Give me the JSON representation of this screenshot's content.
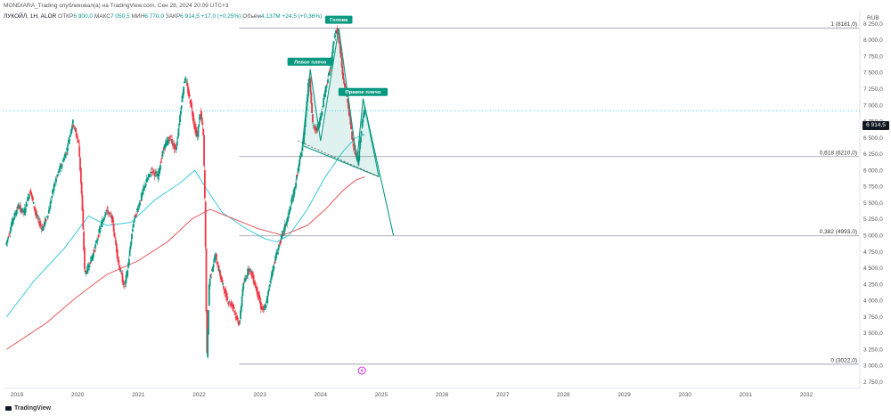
{
  "header": {
    "published": "MONDIARA_Trading опубликовал(а) на TradingView.com, Сен 28, 2024 20:09 UTC+3",
    "symbol": "ЛУКОЙЛ, 1Н, ALOR",
    "open_label": "ОТКР",
    "open": "6 900,0",
    "high_label": "МАКС",
    "high": "7 050,5",
    "low_label": "МИН",
    "low": "6 770,0",
    "close_label": "ЗАКР",
    "close": "6 914,5",
    "change": "+17,0 (+0,25%)",
    "volume_label": "Объём",
    "volume": "4,137M",
    "vol_change": "+24,5 (+0,36%)"
  },
  "currency": "RUB",
  "price_badge": "6 914,5",
  "logo_text": "TradingView",
  "colors": {
    "up": "#089981",
    "down": "#f23645",
    "ma_fast": "#26c6da",
    "ma_slow": "#e5484d",
    "fib": "#9598a1",
    "pattern": "#089981",
    "price_line": "#26c6da"
  },
  "chart_data": {
    "type": "candlestick",
    "y_axis_labels": [
      "8 250,0",
      "8 000,0",
      "7 750,0",
      "7 500,0",
      "7 250,0",
      "7 000,0",
      "6 750,0",
      "6 500,0",
      "6 250,0",
      "6 000,0",
      "5 750,0",
      "5 500,0",
      "5 250,0",
      "5 000,0",
      "4 750,0",
      "4 500,0",
      "4 250,0",
      "4 000,0",
      "3 750,0",
      "3 500,0",
      "3 250,0",
      "3 000,0",
      "2 750,0"
    ],
    "y_axis_values": [
      8250,
      8000,
      7750,
      7500,
      7250,
      7000,
      6750,
      6500,
      6250,
      6000,
      5750,
      5500,
      5250,
      5000,
      4750,
      4500,
      4250,
      4000,
      3750,
      3500,
      3250,
      3000,
      2750
    ],
    "ylim": [
      2650,
      8450
    ],
    "x_axis_labels": [
      "2019",
      "2020",
      "2021",
      "2022",
      "2023",
      "2024",
      "2025",
      "2026",
      "2027",
      "2028",
      "2029",
      "2030",
      "2031",
      "2032"
    ],
    "xlim": [
      2018.8,
      2032.9
    ],
    "last_price": 6914.5,
    "price_series": [
      [
        2018.85,
        4850
      ],
      [
        2018.95,
        5200
      ],
      [
        2019.05,
        5450
      ],
      [
        2019.15,
        5350
      ],
      [
        2019.25,
        5700
      ],
      [
        2019.35,
        5300
      ],
      [
        2019.45,
        5100
      ],
      [
        2019.55,
        5350
      ],
      [
        2019.65,
        5800
      ],
      [
        2019.75,
        6050
      ],
      [
        2019.85,
        6300
      ],
      [
        2019.95,
        6750
      ],
      [
        2020.05,
        6400
      ],
      [
        2020.1,
        5600
      ],
      [
        2020.15,
        4400
      ],
      [
        2020.2,
        4500
      ],
      [
        2020.3,
        4750
      ],
      [
        2020.4,
        5100
      ],
      [
        2020.5,
        5400
      ],
      [
        2020.6,
        5250
      ],
      [
        2020.7,
        4600
      ],
      [
        2020.8,
        4200
      ],
      [
        2020.85,
        4450
      ],
      [
        2020.95,
        5200
      ],
      [
        2021.05,
        5500
      ],
      [
        2021.15,
        5800
      ],
      [
        2021.25,
        6000
      ],
      [
        2021.35,
        5900
      ],
      [
        2021.45,
        6350
      ],
      [
        2021.55,
        6500
      ],
      [
        2021.65,
        6300
      ],
      [
        2021.75,
        7100
      ],
      [
        2021.8,
        7450
      ],
      [
        2021.85,
        7200
      ],
      [
        2021.9,
        7000
      ],
      [
        2021.95,
        6700
      ],
      [
        2022.0,
        6500
      ],
      [
        2022.05,
        6900
      ],
      [
        2022.1,
        6600
      ],
      [
        2022.13,
        5400
      ],
      [
        2022.16,
        3100
      ],
      [
        2022.2,
        4300
      ],
      [
        2022.3,
        4700
      ],
      [
        2022.4,
        4300
      ],
      [
        2022.5,
        4000
      ],
      [
        2022.6,
        3900
      ],
      [
        2022.65,
        3700
      ],
      [
        2022.7,
        3650
      ],
      [
        2022.75,
        4200
      ],
      [
        2022.85,
        4500
      ],
      [
        2022.9,
        4400
      ],
      [
        2023.0,
        4100
      ],
      [
        2023.05,
        3900
      ],
      [
        2023.1,
        3850
      ],
      [
        2023.15,
        4000
      ],
      [
        2023.2,
        4300
      ],
      [
        2023.3,
        4700
      ],
      [
        2023.4,
        5000
      ],
      [
        2023.5,
        5300
      ],
      [
        2023.6,
        5700
      ],
      [
        2023.7,
        6200
      ],
      [
        2023.75,
        6450
      ],
      [
        2023.8,
        7000
      ],
      [
        2023.85,
        7500
      ],
      [
        2023.9,
        6700
      ],
      [
        2023.95,
        6600
      ],
      [
        2024.0,
        6700
      ],
      [
        2024.05,
        6900
      ],
      [
        2024.1,
        7200
      ],
      [
        2024.2,
        7600
      ],
      [
        2024.25,
        8000
      ],
      [
        2024.3,
        8180
      ],
      [
        2024.35,
        7900
      ],
      [
        2024.4,
        7400
      ],
      [
        2024.45,
        7200
      ],
      [
        2024.5,
        6900
      ],
      [
        2024.55,
        6500
      ],
      [
        2024.6,
        6300
      ],
      [
        2024.65,
        6100
      ],
      [
        2024.7,
        6600
      ],
      [
        2024.75,
        6914.5
      ]
    ],
    "moving_averages": [
      {
        "values": [
          [
            2018.85,
            3750
          ],
          [
            2019.3,
            4300
          ],
          [
            2019.8,
            4800
          ],
          [
            2020.2,
            5300
          ],
          [
            2020.5,
            5150
          ],
          [
            2020.9,
            5200
          ],
          [
            2021.3,
            5550
          ],
          [
            2021.7,
            5800
          ],
          [
            2021.95,
            6000
          ],
          [
            2022.15,
            5700
          ],
          [
            2022.4,
            5350
          ],
          [
            2022.8,
            5100
          ],
          [
            2023.1,
            4950
          ],
          [
            2023.3,
            4900
          ],
          [
            2023.5,
            5000
          ],
          [
            2023.8,
            5400
          ],
          [
            2024.1,
            5900
          ],
          [
            2024.4,
            6300
          ],
          [
            2024.6,
            6500
          ],
          [
            2024.75,
            6550
          ]
        ]
      },
      {
        "values": [
          [
            2018.85,
            3250
          ],
          [
            2019.5,
            3650
          ],
          [
            2020.0,
            4050
          ],
          [
            2020.5,
            4400
          ],
          [
            2021.0,
            4600
          ],
          [
            2021.5,
            4900
          ],
          [
            2021.9,
            5250
          ],
          [
            2022.2,
            5400
          ],
          [
            2022.6,
            5250
          ],
          [
            2023.0,
            5100
          ],
          [
            2023.4,
            5000
          ],
          [
            2023.8,
            5150
          ],
          [
            2024.1,
            5400
          ],
          [
            2024.4,
            5700
          ],
          [
            2024.6,
            5850
          ],
          [
            2024.75,
            5900
          ]
        ]
      }
    ],
    "fib_levels": [
      {
        "label": "1 (8181,0)",
        "value": 8181
      },
      {
        "label": "0,618 (6210,0)",
        "value": 6210
      },
      {
        "label": "0,382 (4993,0)",
        "value": 4993
      },
      {
        "label": "0 (3022,0)",
        "value": 3022
      }
    ],
    "pattern": {
      "left_shoulder": {
        "label": "Левое плечо",
        "x": 2023.85,
        "y": 7550
      },
      "head": {
        "label": "Голова",
        "x": 2024.32,
        "y": 8181
      },
      "right_shoulder": {
        "label": "Правое плечо",
        "x": 2024.72,
        "y": 7100
      },
      "neckline_start": [
        2023.65,
        6450
      ],
      "neckline_end": [
        2024.98,
        5900
      ],
      "neck_mid": [
        2024.62,
        6150
      ],
      "projection_target": [
        2025.22,
        5000
      ]
    }
  }
}
